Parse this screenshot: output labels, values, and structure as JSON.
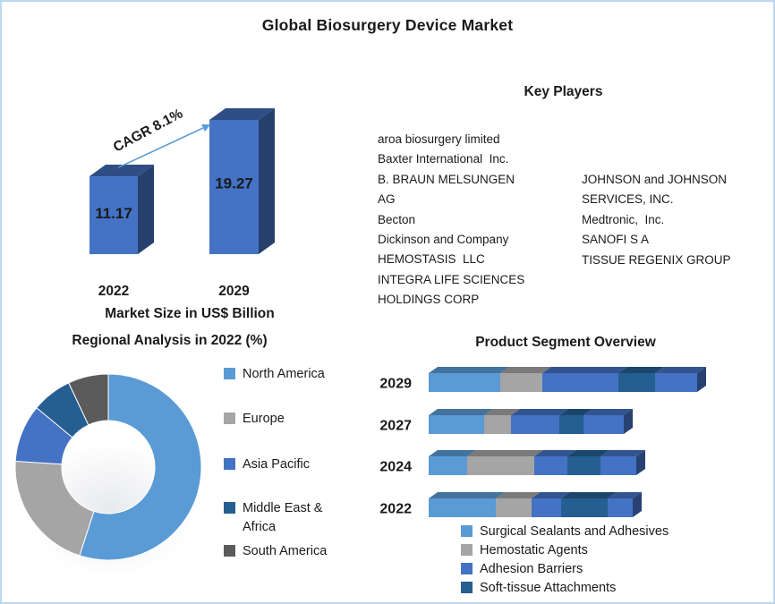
{
  "page": {
    "title": "Global Biosurgery Device Market"
  },
  "key_players": {
    "heading": "Key Players",
    "column1": [
      "aroa biosurgery limited",
      "Baxter International  Inc.",
      "B. BRAUN MELSUNGEN",
      "AG",
      "Becton",
      "Dickinson and Company",
      "HEMOSTASIS  LLC",
      "INTEGRA LIFE SCIENCES",
      "HOLDINGS CORP"
    ],
    "column2": [
      "JOHNSON and JOHNSON",
      "SERVICES, INC.",
      "Medtronic,  Inc.",
      "SANOFI S A",
      "TISSUE REGENIX GROUP"
    ]
  },
  "chart_data": [
    {
      "id": "market_size",
      "type": "bar",
      "title": "Market Size in US$ Billion",
      "categories": [
        "2022",
        "2029"
      ],
      "values": [
        11.17,
        19.27
      ],
      "value_labels": [
        "11.17",
        "19.27"
      ],
      "annotation": "CAGR 8.1%",
      "colors": {
        "front": "#4472C4",
        "arrow": "#5B9BD5"
      }
    },
    {
      "id": "regional_analysis",
      "type": "pie",
      "subtype": "donut",
      "title": "Regional Analysis in 2022 (%)",
      "labels": [
        "North America",
        "Europe",
        "Asia Pacific",
        "Middle East & Africa",
        "South America"
      ],
      "values": [
        55,
        21,
        10,
        7,
        7
      ],
      "colors": [
        "#5B9BD5",
        "#A5A5A5",
        "#4472C4",
        "#255E91",
        "#5B5B5B"
      ],
      "legend_position": "right"
    },
    {
      "id": "product_segment",
      "type": "bar",
      "subtype": "horizontal-stacked",
      "title": "Product Segment Overview",
      "categories": [
        "2029",
        "2027",
        "2024",
        "2022"
      ],
      "series": [
        {
          "name": "Surgical Sealants and Adhesives",
          "color": "#5B9BD5",
          "values": [
            80,
            62,
            43,
            75
          ]
        },
        {
          "name": "Hemostatic Agents",
          "color": "#A5A5A5",
          "values": [
            47,
            30,
            75,
            40
          ]
        },
        {
          "name": "Adhesion Barriers",
          "color": "#4472C4",
          "values": [
            85,
            54,
            37,
            33
          ]
        },
        {
          "name": "Soft-tissue Attachments",
          "color": "#255E91",
          "values": [
            41,
            27,
            37,
            52
          ]
        },
        {
          "name": "(unlabeled segment)",
          "color": "#4472C4",
          "values": [
            47,
            45,
            40,
            28
          ]
        }
      ],
      "legend": [
        "Surgical Sealants and Adhesives",
        "Hemostatic Agents",
        "Adhesion Barriers",
        "Soft-tissue Attachments"
      ],
      "value_scale": "relative width (no axis shown)",
      "legend_position": "bottom"
    }
  ]
}
